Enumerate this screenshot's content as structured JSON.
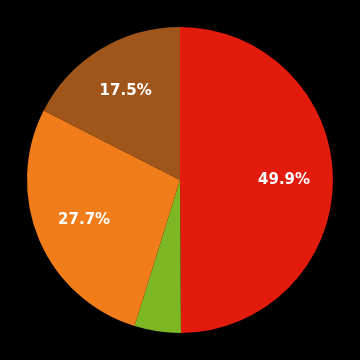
{
  "chart_data": {
    "type": "pie",
    "values": [
      49.9,
      4.9,
      27.7,
      17.5
    ],
    "value_labels": [
      "49.9%",
      null,
      "27.7%",
      "17.5%"
    ],
    "colors": [
      "#e21b0c",
      "#7db726",
      "#f07d1a",
      "#a0561a"
    ],
    "data_labels": true
  }
}
